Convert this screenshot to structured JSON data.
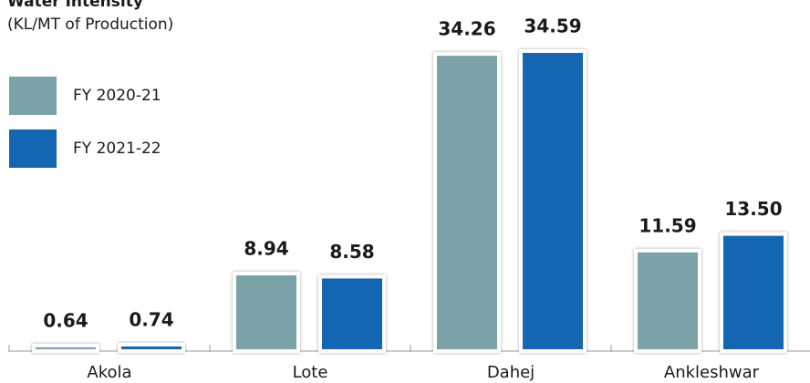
{
  "chart_data": {
    "type": "bar",
    "title": "Water Intensity",
    "subtitle": "(KL/MT of Production)",
    "categories": [
      "Akola",
      "Lote",
      "Dahej",
      "Ankleshwar"
    ],
    "series": [
      {
        "name": "FY 2020-21",
        "color": "#7ba3a7",
        "values": [
          0.64,
          8.94,
          34.26,
          11.59
        ],
        "value_labels": [
          "0.64",
          "8.94",
          "34.26",
          "11.59"
        ]
      },
      {
        "name": "FY 2021-22",
        "color": "#1466b3",
        "values": [
          0.74,
          8.58,
          34.59,
          13.5
        ],
        "value_labels": [
          "0.74",
          "8.58",
          "34.59",
          "13.50"
        ]
      }
    ]
  }
}
